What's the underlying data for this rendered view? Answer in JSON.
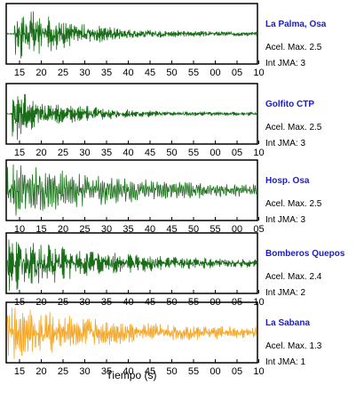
{
  "chart_data": [
    {
      "type": "line",
      "station": "La Palma, Osa",
      "pga_label": "Acel. Max. 2.5",
      "jma_label": "Int JMA: 3",
      "color": "#1a6e1a",
      "x_tick_labels": [
        "15",
        "20",
        "25",
        "30",
        "35",
        "40",
        "45",
        "50",
        "55",
        "00",
        "05",
        "10"
      ],
      "xlim_labels": [
        "12",
        "11"
      ],
      "onset": 0.03,
      "peak": 0.95,
      "decay": 0.22,
      "noise": 0.06,
      "freq": 7
    },
    {
      "type": "line",
      "station": "Golfito CTP",
      "pga_label": "Acel. Max. 2.5",
      "jma_label": "Int JMA: 3",
      "color": "#1a6e1a",
      "x_tick_labels": [
        "15",
        "20",
        "25",
        "30",
        "35",
        "40",
        "45",
        "50",
        "55",
        "00",
        "05",
        "10"
      ],
      "onset": 0.02,
      "peak": 0.9,
      "decay": 0.2,
      "noise": 0.05,
      "freq": 8
    },
    {
      "type": "line",
      "station": "Hosp. Osa",
      "pga_label": "Acel. Max. 2.5",
      "jma_label": "Int JMA: 3",
      "color": "#1a6e1a",
      "x_tick_labels": [
        "10",
        "15",
        "20",
        "25",
        "30",
        "35",
        "40",
        "45",
        "50",
        "55",
        "00",
        "05"
      ],
      "onset": 0.0,
      "peak": 0.85,
      "decay": 0.45,
      "noise": 0.1,
      "freq": 4
    },
    {
      "type": "line",
      "station": "Bomberos Quepos",
      "pga_label": "Acel. Max. 2.4",
      "jma_label": "Int JMA: 2",
      "color": "#1a6e1a",
      "x_tick_labels": [
        "15",
        "20",
        "25",
        "30",
        "35",
        "40",
        "45",
        "50",
        "55",
        "00",
        "05",
        "10"
      ],
      "onset": 0.0,
      "peak": 0.9,
      "decay": 0.35,
      "noise": 0.08,
      "freq": 9
    },
    {
      "type": "line",
      "station": "La Sabana",
      "pga_label": "Acel. Max. 1.3",
      "jma_label": "Int JMA: 1",
      "color": "#f5a623",
      "x_tick_labels": [
        "15",
        "20",
        "25",
        "30",
        "35",
        "40",
        "45",
        "50",
        "55",
        "00",
        "05",
        "10"
      ],
      "onset": 0.0,
      "peak": 0.8,
      "decay": 0.4,
      "noise": 0.12,
      "freq": 5
    }
  ],
  "xlabel": "Tiempo (s)"
}
